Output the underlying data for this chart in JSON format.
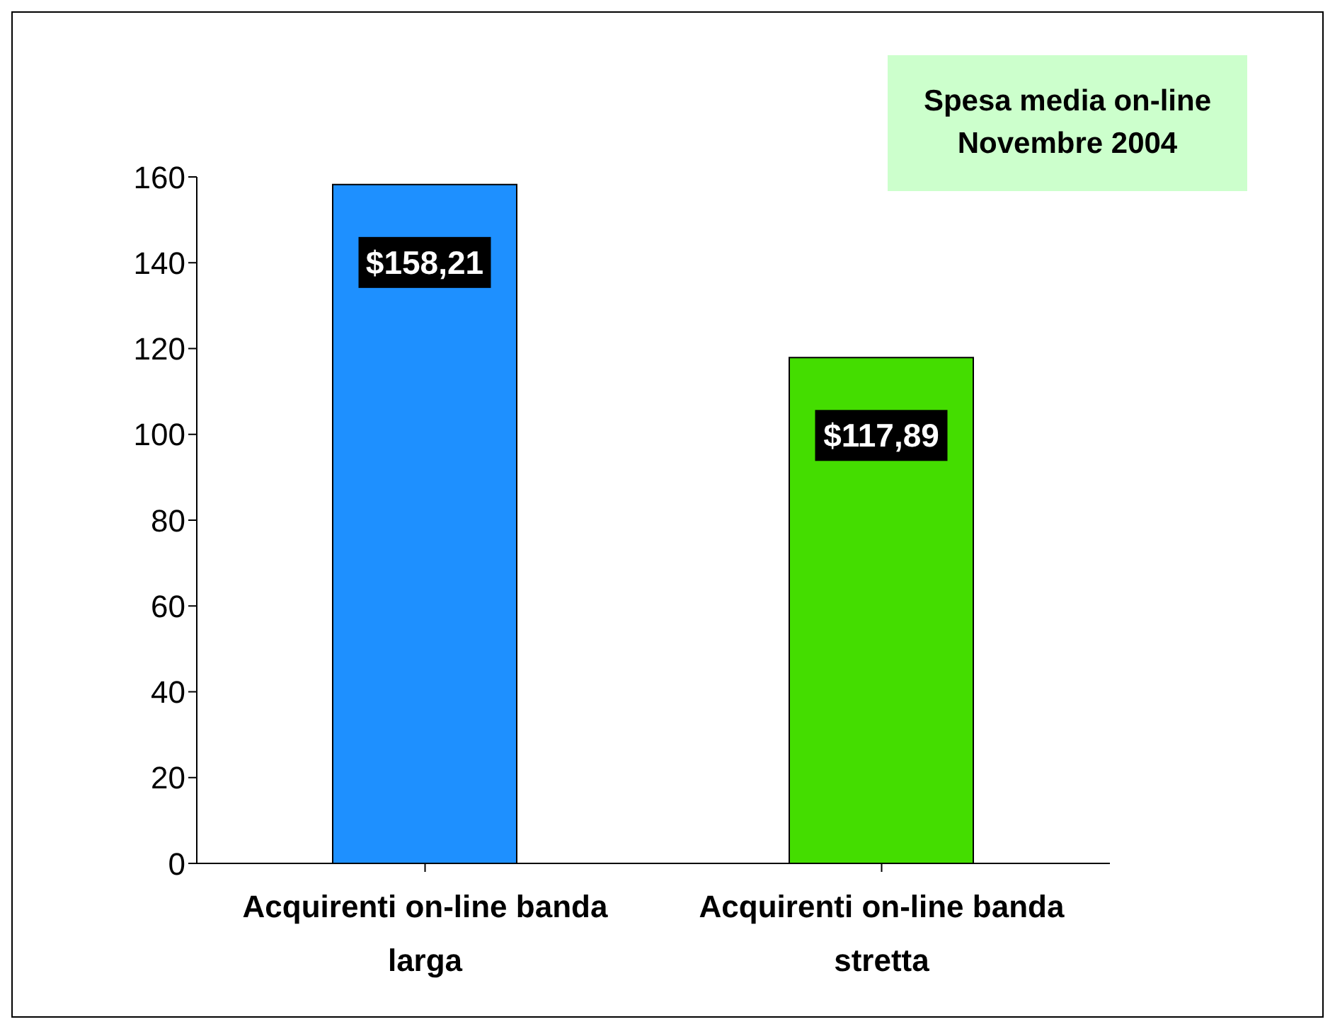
{
  "chart_data": {
    "type": "bar",
    "title": "Spesa media on-line\nNovembre 2004",
    "categories": [
      "Acquirenti on-line banda larga",
      "Acquirenti on-line banda stretta"
    ],
    "values": [
      158.21,
      117.89
    ],
    "colors": [
      "#1e90ff",
      "#44dd00"
    ],
    "value_labels": [
      "$158,21",
      "$117,89"
    ],
    "ylim": [
      0,
      160
    ],
    "yticks": [
      0,
      20,
      40,
      60,
      80,
      100,
      120,
      140,
      160
    ],
    "grid": false
  }
}
